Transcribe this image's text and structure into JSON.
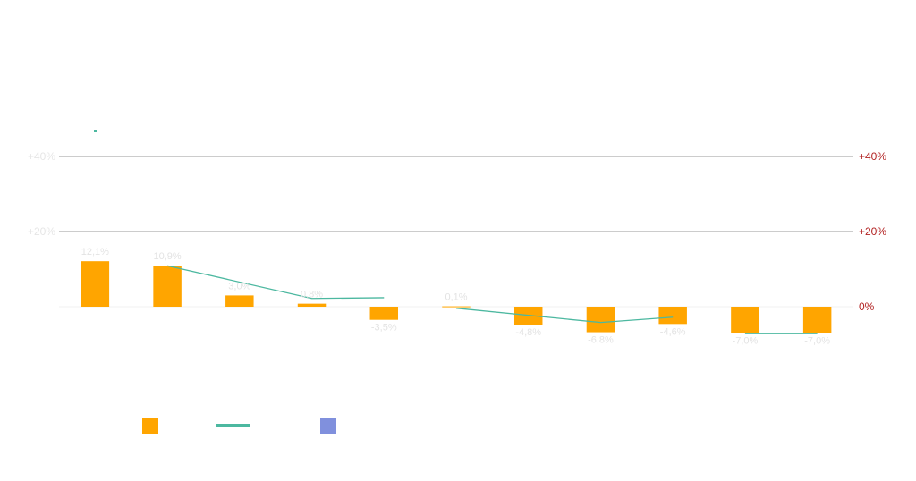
{
  "chart_data": {
    "type": "bar",
    "categories": [
      "",
      "",
      "",
      "",
      "",
      "",
      "",
      "",
      "",
      "",
      ""
    ],
    "series": [
      {
        "kind": "bar",
        "color": "#ffa500",
        "values": [
          12.1,
          10.9,
          3.0,
          0.8,
          -3.5,
          0.1,
          -4.8,
          -6.8,
          -4.6,
          -7.0,
          -7.0
        ],
        "labels": [
          "12,1%",
          "10,9%",
          "3,0%",
          "0,8%",
          "-3,5%",
          "0,1%",
          "-4,8%",
          "-6,8%",
          "-4,6%",
          "-7,0%",
          "-7,0%"
        ]
      },
      {
        "kind": "line",
        "color": "#4cb8a0",
        "segments": [
          [
            [
              1,
              10.9
            ],
            [
              3,
              2.2
            ],
            [
              4,
              2.4
            ]
          ],
          [
            [
              5,
              -0.4
            ],
            [
              7,
              -4.2
            ],
            [
              8,
              -2.8
            ]
          ],
          [
            [
              9,
              -7.2
            ],
            [
              10,
              -7.2
            ]
          ]
        ]
      },
      {
        "kind": "legend-only",
        "color": "#8090dd"
      }
    ],
    "y_left": {
      "ticks": [
        {
          "value": 40,
          "label": "+40%"
        },
        {
          "value": 20,
          "label": "+20%"
        }
      ],
      "color": "#e6e6e6"
    },
    "y_right": {
      "ticks": [
        {
          "value": 40,
          "label": "+40%"
        },
        {
          "value": 20,
          "label": "+20%"
        },
        {
          "value": 0,
          "label": "0%"
        }
      ],
      "color": "#b22222"
    },
    "ylim": [
      -25,
      55
    ],
    "gridlines": [
      40,
      20
    ],
    "grid_color": "#999999",
    "zero_line_color": "#f0f0f0",
    "marker_color": "#4cb8a0",
    "legend": {
      "placement": "bottom-left",
      "items": [
        {
          "shape": "square",
          "color": "#ffa500"
        },
        {
          "shape": "line",
          "color": "#4cb8a0"
        },
        {
          "shape": "square",
          "color": "#8090dd"
        }
      ]
    }
  }
}
